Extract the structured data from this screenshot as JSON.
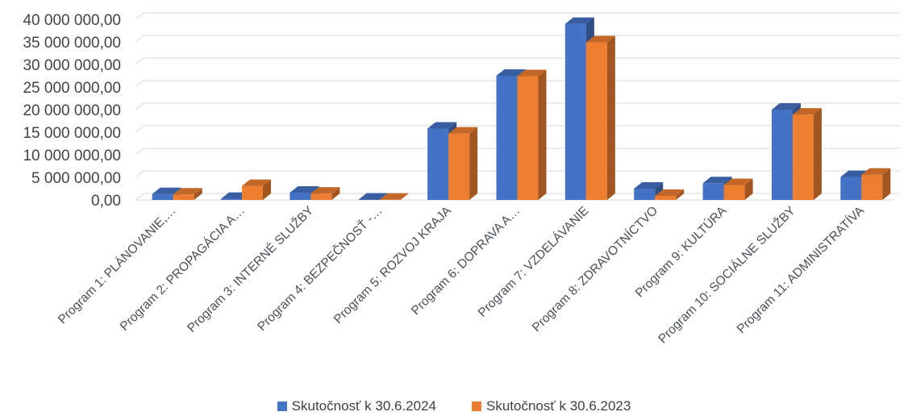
{
  "chart_data": {
    "type": "bar",
    "style": "3d-clustered-column",
    "categories": [
      "Program 1:  PLÁNOVANIE,…",
      "Program 2:  PROPAGÁCIA  A…",
      "Program 3:  INTERNÉ  SLUŽBY",
      "Program 4:  BEZPEČNOSŤ  -…",
      "Program 5: ROZVOJ KRAJA",
      "Program 6:  DOPRAVA A…",
      "Program 7:  VZDELÁVANIE",
      "Program 8: ZDRAVOTNÍCTVO",
      "Program 9:  KULTÚRA",
      "Program 10:  SOCIÁLNE  SLUŽBY",
      "Program 11: ADMINISTRATÍVA"
    ],
    "series": [
      {
        "name": "Skutočnosť k 30.6.2024",
        "color": "#4472C4",
        "values": [
          1300000,
          250000,
          1600000,
          80000,
          15800000,
          27500000,
          39000000,
          2500000,
          3700000,
          20000000,
          5100000
        ]
      },
      {
        "name": "Skutočnosť k 30.6.2023",
        "color": "#ED7D31",
        "values": [
          1200000,
          3100000,
          1400000,
          60000,
          14700000,
          27400000,
          34900000,
          900000,
          3300000,
          18900000,
          5600000
        ]
      }
    ],
    "y_ticks": [
      "0,00",
      "5 000 000,00",
      "10 000 000,00",
      "15 000 000,00",
      "20 000 000,00",
      "25 000 000,00",
      "30 000 000,00",
      "35 000 000,00",
      "40 000 000,00"
    ],
    "ylim": [
      0,
      40000000
    ],
    "title": "",
    "xlabel": "",
    "ylabel": "",
    "grid": true,
    "legend_position": "bottom"
  }
}
